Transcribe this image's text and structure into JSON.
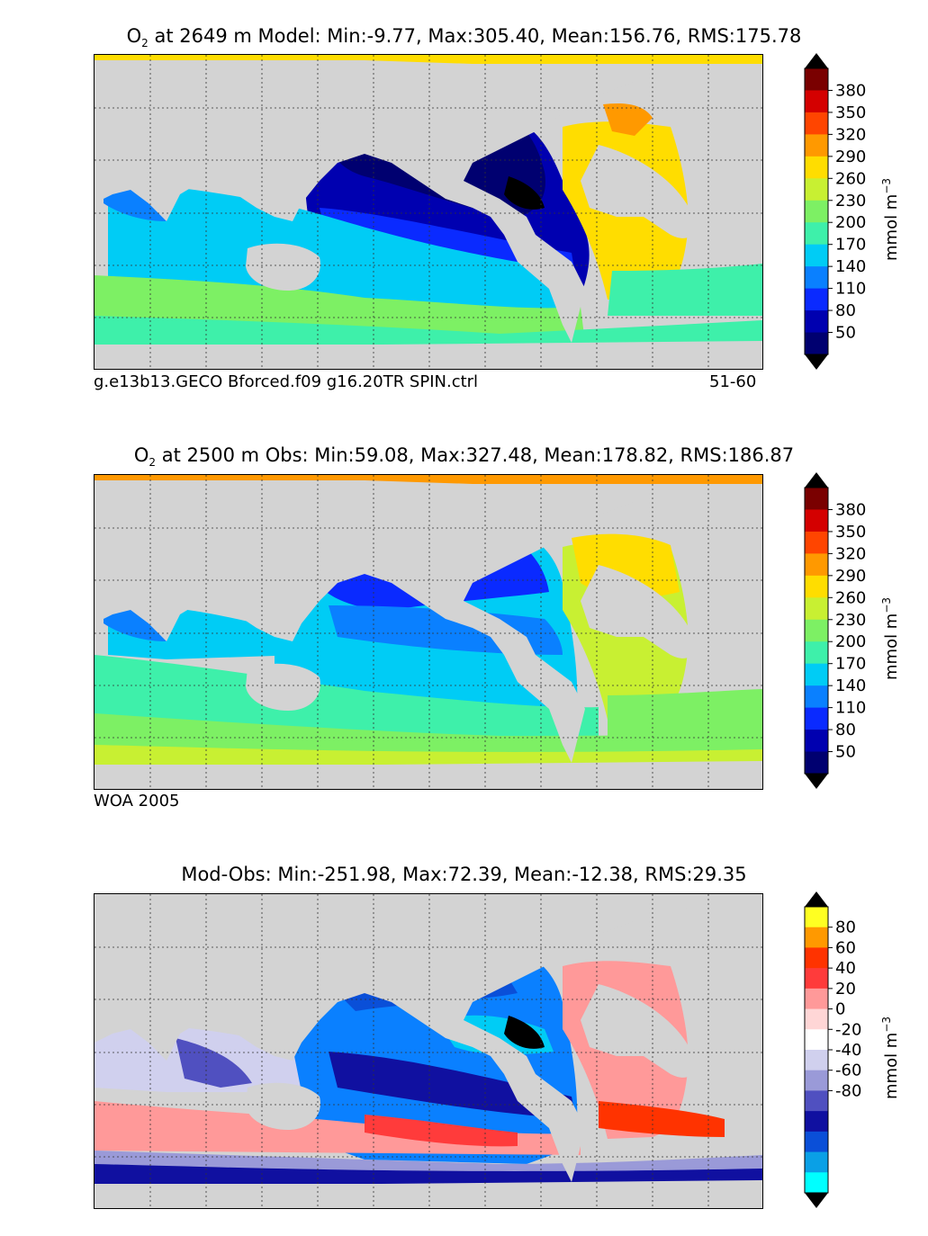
{
  "panels": [
    {
      "title_prefix": "O",
      "title_sub": "2",
      "title_rest": " at 2649 m Model: Min:-9.77, Max:305.40, Mean:156.76, RMS:175.78",
      "caption_left": "g.e13b13.GECO Bforced.f09 g16.20TR SPIN.ctrl",
      "caption_right": "51-60",
      "colorbar": {
        "ticks": [
          "380",
          "350",
          "320",
          "290",
          "260",
          "230",
          "200",
          "170",
          "140",
          "110",
          "80",
          "50"
        ],
        "unit_main": "mmol m",
        "unit_sup": "−3",
        "colors": [
          "#7a0000",
          "#d40000",
          "#ff4500",
          "#ff9900",
          "#ffdd00",
          "#c8f032",
          "#7df064",
          "#3ef0aa",
          "#00ccf5",
          "#0a80ff",
          "#0a2aff",
          "#0000b0",
          "#000070"
        ]
      }
    },
    {
      "title_prefix": "O",
      "title_sub": "2",
      "title_rest": " at 2500 m Obs: Min:59.08, Max:327.48, Mean:178.82, RMS:186.87",
      "caption_left": "WOA 2005",
      "caption_right": "",
      "colorbar": {
        "ticks": [
          "380",
          "350",
          "320",
          "290",
          "260",
          "230",
          "200",
          "170",
          "140",
          "110",
          "80",
          "50"
        ],
        "unit_main": "mmol m",
        "unit_sup": "−3",
        "colors": [
          "#7a0000",
          "#d40000",
          "#ff4500",
          "#ff9900",
          "#ffdd00",
          "#c8f032",
          "#7df064",
          "#3ef0aa",
          "#00ccf5",
          "#0a80ff",
          "#0a2aff",
          "#0000b0",
          "#000070"
        ]
      }
    },
    {
      "title_prefix": "",
      "title_sub": "",
      "title_rest": "Mod-Obs: Min:-251.98, Max:72.39, Mean:-12.38, RMS:29.35",
      "caption_left": "",
      "caption_right": "",
      "colorbar": {
        "ticks": [
          "80",
          "60",
          "40",
          "20",
          "0",
          "-20",
          "-40",
          "-60",
          "-80"
        ],
        "unit_main": "mmol m",
        "unit_sup": "−3",
        "colors": [
          "#ffff22",
          "#ff9900",
          "#ff3300",
          "#ff3b3b",
          "#ff9999",
          "#ffd6d6",
          "#ffffff",
          "#d0d0ee",
          "#9a9ad8",
          "#5050c0",
          "#1010a0",
          "#0a4fd8",
          "#0aa0e6",
          "#00ffff"
        ]
      }
    }
  ],
  "colors": {
    "land": "#d3d3d3",
    "nodata": "#ffffff",
    "anomaly_black": "#000000"
  }
}
